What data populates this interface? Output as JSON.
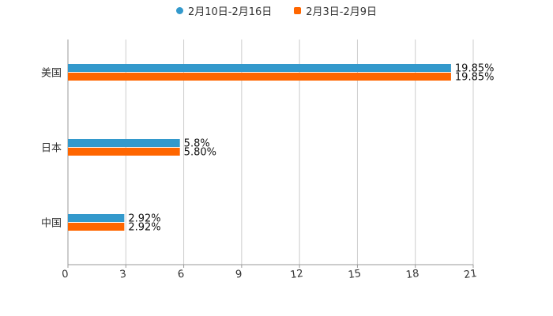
{
  "chart_data": {
    "type": "bar",
    "orientation": "horizontal",
    "categories": [
      "美国",
      "日本",
      "中国"
    ],
    "series": [
      {
        "name": "2月10日-2月16日",
        "color": "#3399cc",
        "values": [
          19.85,
          5.8,
          2.92
        ],
        "labels": [
          "19.85%",
          "5.8%",
          "2.92%"
        ]
      },
      {
        "name": "2月3日-2月9日",
        "color": "#ff6600",
        "values": [
          19.85,
          5.8,
          2.92
        ],
        "labels": [
          "19.85%",
          "5.80%",
          "2.92%"
        ]
      }
    ],
    "xlim": [
      0,
      21
    ],
    "xticks": [
      "0",
      "3",
      "6",
      "9",
      "12",
      "15",
      "18",
      "21"
    ],
    "grid": true,
    "legend": "top-center"
  }
}
